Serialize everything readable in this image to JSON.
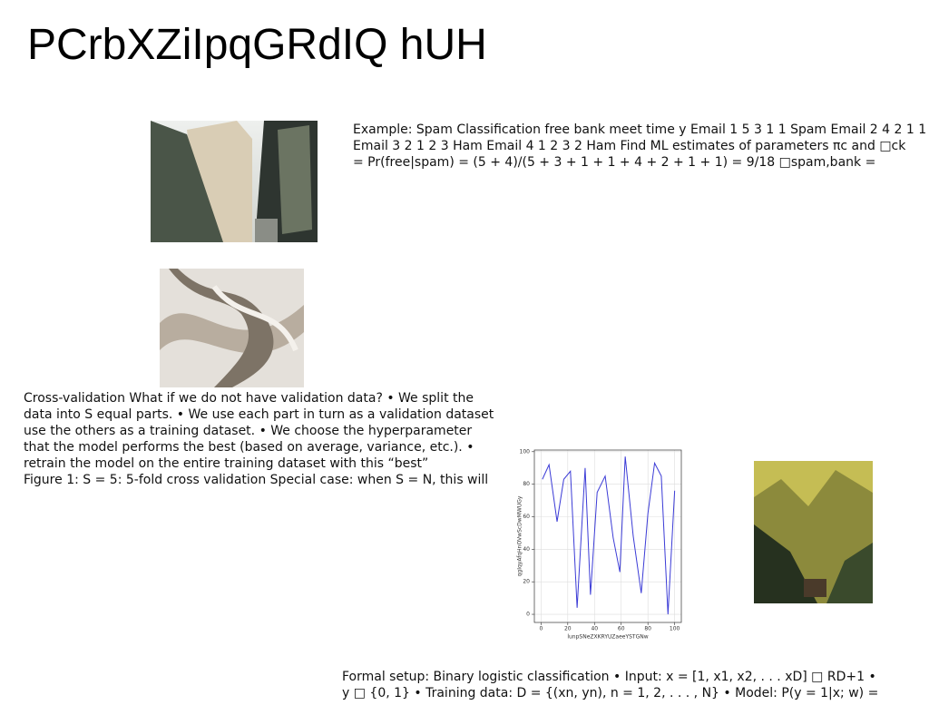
{
  "header": {
    "title": "PCrbXZiIpqGRdIQ hUH"
  },
  "blocks": [
    {
      "lines": [
        "Example: Spam Classification free bank meet time y Email 1 5 3 1 1 Spam Email 2 4 2 1 1",
        "Email 3 2 1 2 3 Ham Email 4 1 2 3 2 Ham Find ML estimates of parameters πc and □ck",
        "= Pr(free|spam) = (5 + 4)/(5 + 3 + 1 + 1 + 4 + 2 + 1 + 1) = 9/18 □spam,bank ="
      ]
    },
    {
      "lines": [
        "Cross-validation What if we do not have validation data? • We split the",
        "data into S equal parts. • We use each part in turn as a validation dataset",
        "use the others as a training dataset. • We choose the hyperparameter",
        "that the model performs the best (based on average, variance, etc.). •",
        "retrain the model on the entire training dataset with this “best”",
        "Figure 1: S = 5: 5-fold cross validation Special case: when S = N, this will"
      ]
    },
    {
      "lines": [
        "Formal setup: Binary logistic classification • Input: x = [1, x1, x2, . . . xD] □ RD+1 •",
        "y □ {0, 1} • Training data: D = {(xn, yn), n = 1, 2, . . . , N} • Model: P(y = 1|x; w) ="
      ]
    }
  ],
  "chart_data": {
    "type": "line",
    "x_label": "lunpSNeZXKRYUZaeeYSTGNw",
    "y_label": "qgIqyAfqHnOVwScDwMWUGy",
    "x": [
      1,
      6,
      12,
      17,
      22,
      27,
      33,
      37,
      42,
      48,
      54,
      59,
      63,
      69,
      75,
      80,
      85,
      90,
      95,
      100
    ],
    "series": [
      {
        "color": "#3b3bd6",
        "values": [
          83,
          92,
          57,
          83,
          88,
          4,
          90,
          12,
          75,
          85,
          47,
          26,
          97,
          48,
          13,
          62,
          93,
          85,
          0,
          76
        ]
      }
    ],
    "xlim": [
      -5,
      105
    ],
    "ylim": [
      -5,
      101
    ],
    "xticks": [
      0,
      20,
      40,
      60,
      80,
      100
    ],
    "yticks": [
      0,
      20,
      40,
      60,
      80,
      100
    ],
    "grid": true
  }
}
